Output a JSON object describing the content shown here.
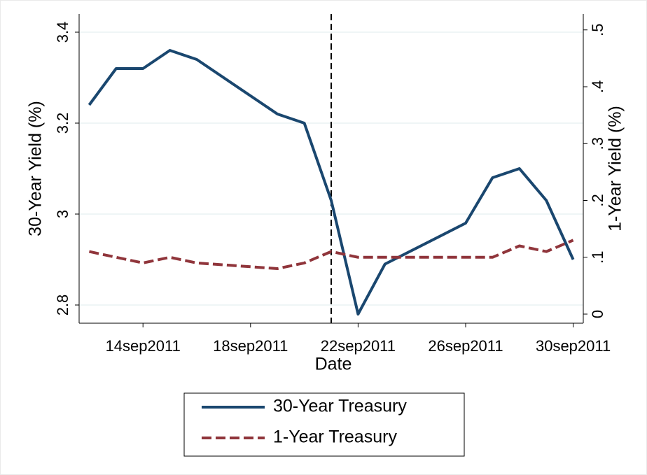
{
  "chart_data": {
    "type": "line",
    "x_label": "Date",
    "y_label": "30-Year Yield (%)",
    "y2_label": "1-Year Yield (%)",
    "x": [
      "2011-09-12",
      "2011-09-13",
      "2011-09-14",
      "2011-09-15",
      "2011-09-16",
      "2011-09-19",
      "2011-09-20",
      "2011-09-21",
      "2011-09-22",
      "2011-09-23",
      "2011-09-26",
      "2011-09-27",
      "2011-09-28",
      "2011-09-29",
      "2011-09-30"
    ],
    "series": [
      {
        "name": "30-Year Treasury",
        "color": "#1a476f",
        "dash": "solid",
        "values": [
          3.24,
          3.32,
          3.32,
          3.36,
          3.34,
          3.22,
          3.2,
          3.03,
          2.78,
          2.89,
          2.98,
          3.08,
          3.1,
          3.03,
          2.9
        ]
      },
      {
        "name": "1-Year Treasury",
        "color": "#90353b",
        "dash": "dashed",
        "axis": "y2",
        "values": [
          0.11,
          0.1,
          0.09,
          0.1,
          0.09,
          0.08,
          0.09,
          0.11,
          0.1,
          0.1,
          0.1,
          0.1,
          0.12,
          0.11,
          0.13
        ]
      }
    ],
    "xlim": [
      "2011-09-11T15:00",
      "2011-09-30T09:00"
    ],
    "xticks": [
      {
        "value": "2011-09-14",
        "label": "14sep2011"
      },
      {
        "value": "2011-09-18",
        "label": "18sep2011"
      },
      {
        "value": "2011-09-22",
        "label": "22sep2011"
      },
      {
        "value": "2011-09-26",
        "label": "26sep2011"
      },
      {
        "value": "2011-09-30",
        "label": "30sep2011"
      }
    ],
    "ylim": [
      2.76,
      3.44
    ],
    "yticks": [
      2.8,
      3,
      3.2,
      3.4
    ],
    "y2lim": [
      -0.016,
      0.528
    ],
    "y2ticks": [
      {
        "value": 0,
        "label": "0"
      },
      {
        "value": 0.1,
        "label": ".1"
      },
      {
        "value": 0.2,
        "label": ".2"
      },
      {
        "value": 0.3,
        "label": ".3"
      },
      {
        "value": 0.4,
        "label": ".4"
      },
      {
        "value": 0.5,
        "label": ".5"
      }
    ],
    "vline": "2011-09-21",
    "grid": true
  }
}
